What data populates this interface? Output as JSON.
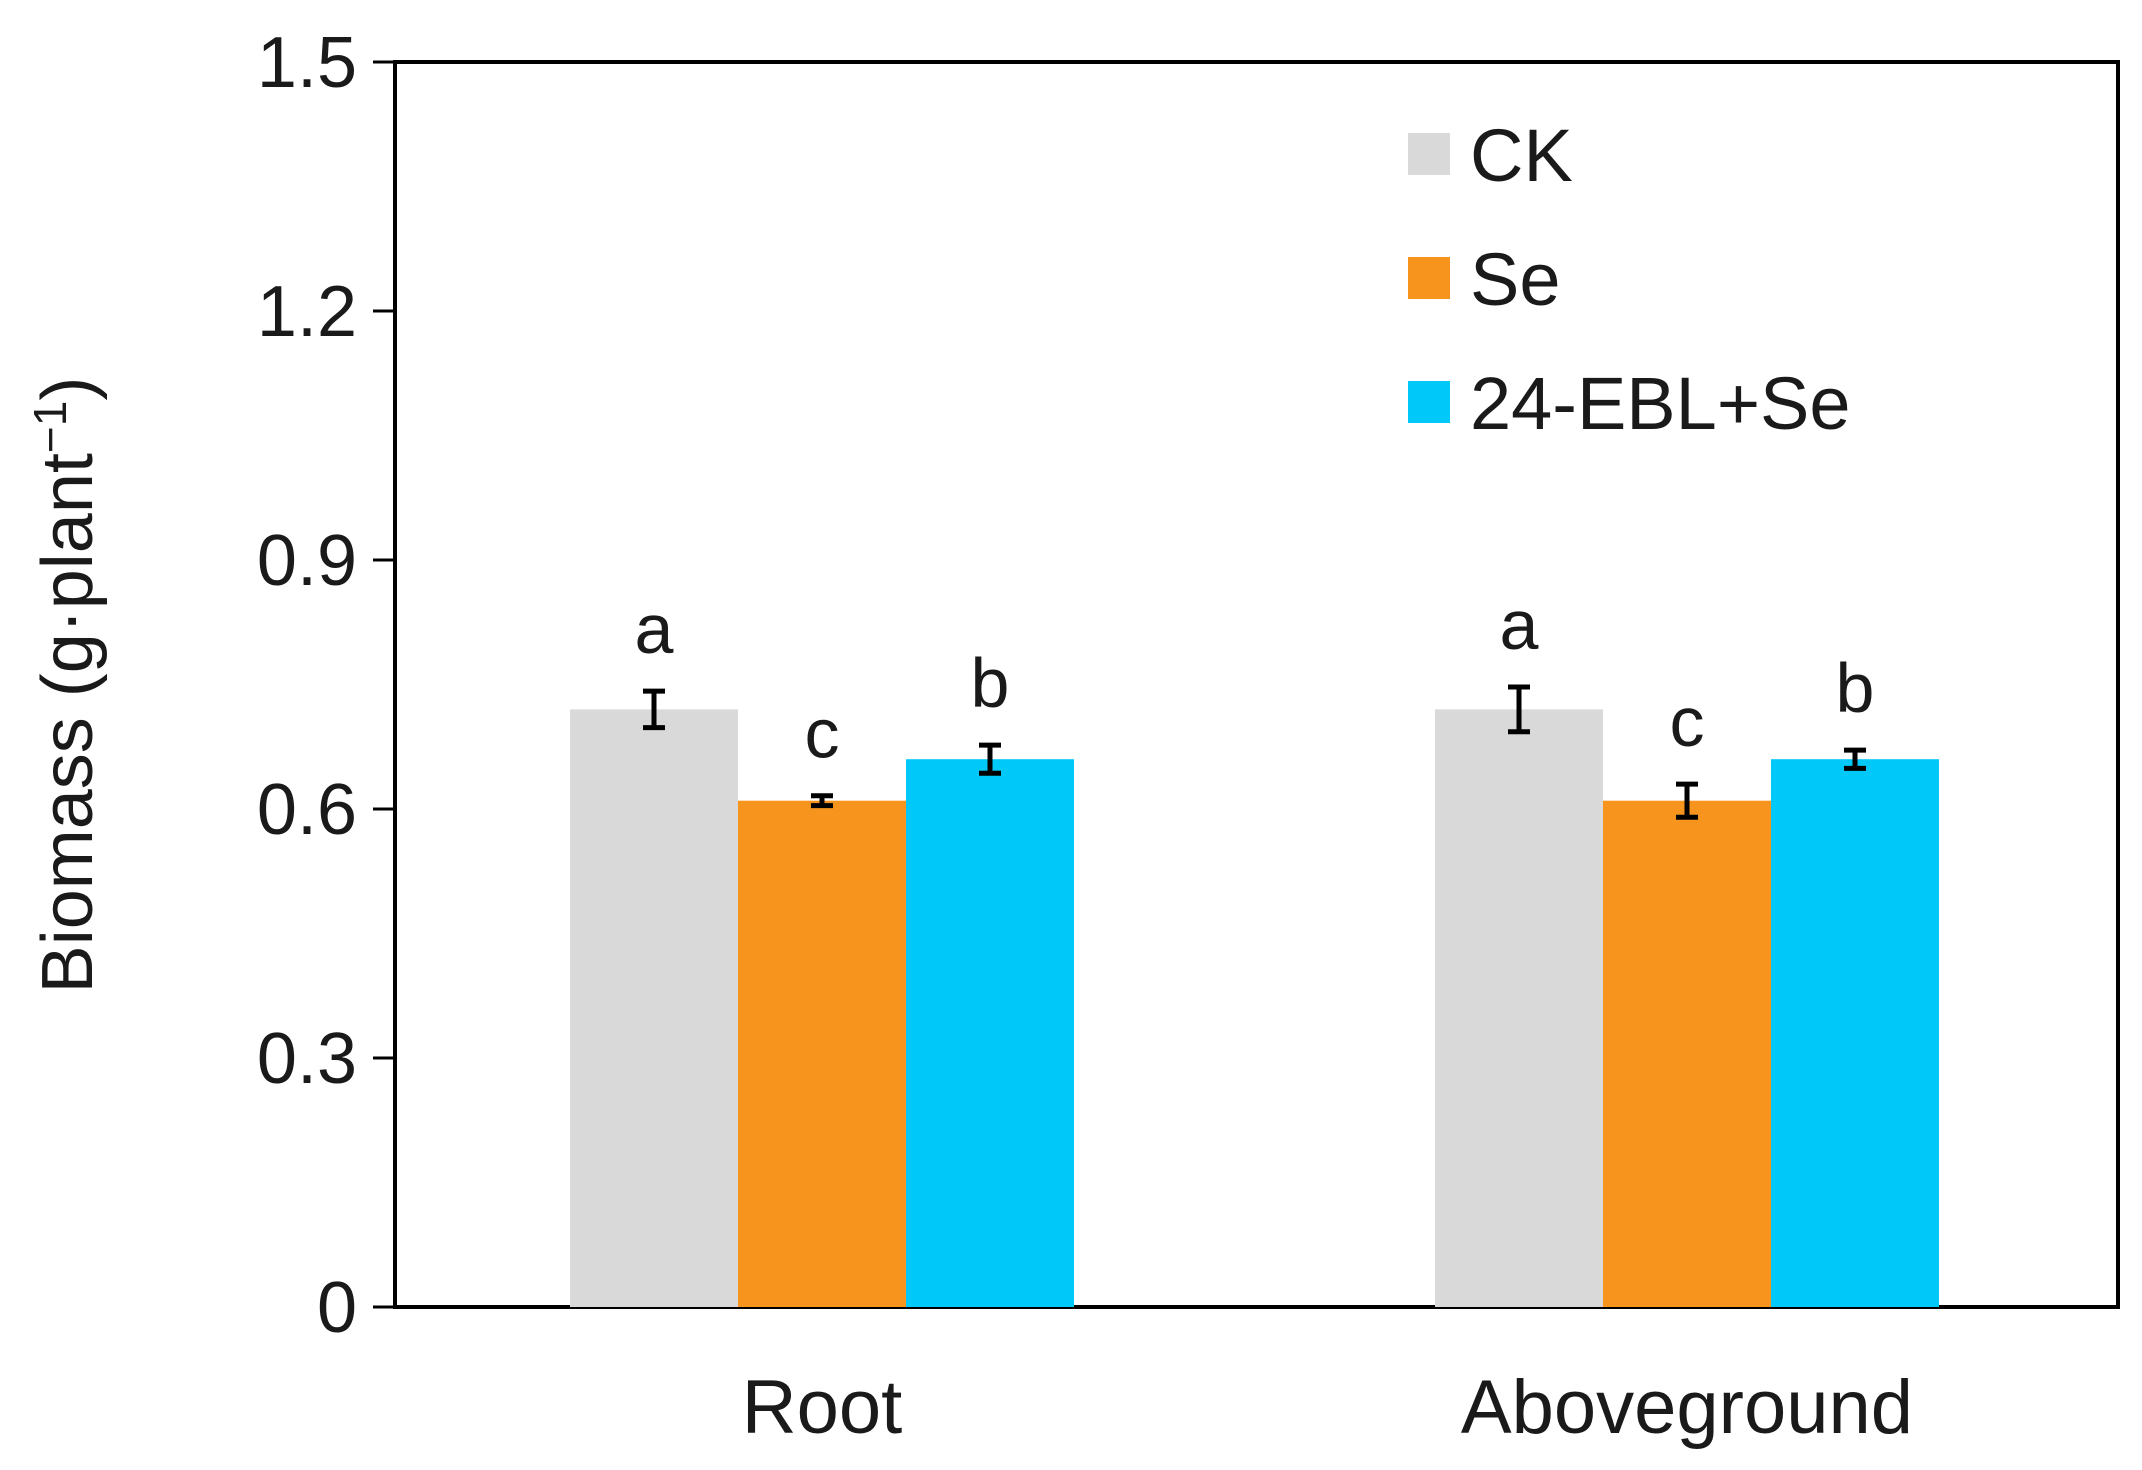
{
  "chart_data": {
    "type": "bar",
    "title": "",
    "xlabel": "",
    "ylabel": "Biomass (g·plant",
    "ylabel_superscript": "−1",
    "ylabel_close": ")",
    "ylim": [
      0,
      1.5
    ],
    "yticks": [
      "0",
      "0.3",
      "0.6",
      "0.9",
      "1.2",
      "1.5"
    ],
    "ytick_values": [
      0,
      0.3,
      0.6,
      0.9,
      1.2,
      1.5
    ],
    "grid": false,
    "legend_position": "top-right",
    "categories": [
      "Root",
      "Aboveground"
    ],
    "series": [
      {
        "name": "CK",
        "color": "#d9d9d9",
        "values": [
          0.72,
          0.72
        ],
        "errors": [
          0.022,
          0.027
        ],
        "letters": [
          "a",
          "a"
        ]
      },
      {
        "name": "Se",
        "color": "#f7941d",
        "values": [
          0.61,
          0.61
        ],
        "errors": [
          0.006,
          0.02
        ],
        "letters": [
          "c",
          "c"
        ]
      },
      {
        "name": "24-EBL+Se",
        "color": "#00c8f8",
        "values": [
          0.66,
          0.66
        ],
        "errors": [
          0.017,
          0.011
        ],
        "letters": [
          "b",
          "b"
        ]
      }
    ]
  }
}
